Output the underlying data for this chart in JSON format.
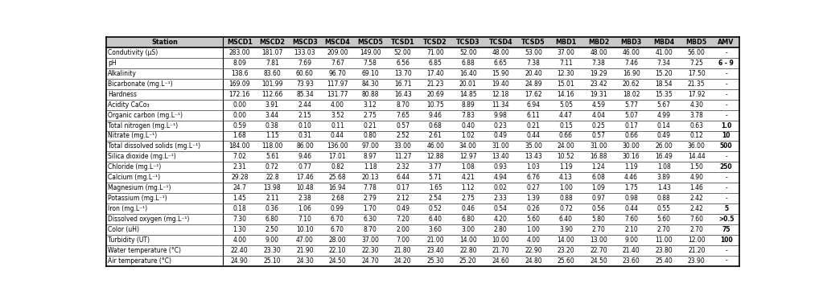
{
  "columns": [
    "Station",
    "MSCD1",
    "MSCD2",
    "MSCD3",
    "MSCD4",
    "MSCD5",
    "TCSD1",
    "TCSD2",
    "TCSD3",
    "TCSD4",
    "TCSD5",
    "MBD1",
    "MBD2",
    "MBD3",
    "MBD4",
    "MBD5",
    "AMV"
  ],
  "rows": [
    [
      "Condutivity (μS)",
      "283.00",
      "181.07",
      "133.03",
      "209.00",
      "149.00",
      "52.00",
      "71.00",
      "52.00",
      "48.00",
      "53.00",
      "37.00",
      "48.00",
      "46.00",
      "41.00",
      "56.00",
      "-"
    ],
    [
      "pH",
      "8.09",
      "7.81",
      "7.69",
      "7.67",
      "7.58",
      "6.56",
      "6.85",
      "6.88",
      "6.65",
      "7.38",
      "7.11",
      "7.38",
      "7.46",
      "7.34",
      "7.25",
      "6 - 9"
    ],
    [
      "Alkalinity",
      "138.6",
      "83.60",
      "60.60",
      "96.70",
      "69.10",
      "13.70",
      "17.40",
      "16.40",
      "15.90",
      "20.40",
      "12.30",
      "19.29",
      "16.90",
      "15.20",
      "17.50",
      "-"
    ],
    [
      "Bicarbonate (mg.L⁻¹)",
      "169.09",
      "101.99",
      "73.93",
      "117.97",
      "84.30",
      "16.71",
      "21.23",
      "20.01",
      "19.40",
      "24.89",
      "15.01",
      "23.42",
      "20.62",
      "18.54",
      "21.35",
      "-"
    ],
    [
      "Hardness",
      "172.16",
      "112.66",
      "85.34",
      "131.77",
      "80.88",
      "16.43",
      "20.69",
      "14.85",
      "12.18",
      "17.62",
      "14.16",
      "19.31",
      "18.02",
      "15.35",
      "17.92",
      "-"
    ],
    [
      "Acidity CaCo₃",
      "0.00",
      "3.91",
      "2.44",
      "4.00",
      "3.12",
      "8.70",
      "10.75",
      "8.89",
      "11.34",
      "6.94",
      "5.05",
      "4.59",
      "5.77",
      "5.67",
      "4.30",
      "-"
    ],
    [
      "Organic carbon (mg.L⁻¹)",
      "0.00",
      "3.44",
      "2.15",
      "3.52",
      "2.75",
      "7.65",
      "9.46",
      "7.83",
      "9.98",
      "6.11",
      "4.47",
      "4.04",
      "5.07",
      "4.99",
      "3.78",
      "-"
    ],
    [
      "Total nitrogen (mg.L⁻¹)",
      "0.59",
      "0.38",
      "0.10",
      "0.11",
      "0.21",
      "0.57",
      "0.68",
      "0.40",
      "0.23",
      "0.21",
      "0.15",
      "0.25",
      "0.17",
      "0.14",
      "0.63",
      "1.0"
    ],
    [
      "Nitrate (mg.L⁻¹)",
      "1.68",
      "1.15",
      "0.31",
      "0.44",
      "0.80",
      "2.52",
      "2.61",
      "1.02",
      "0.49",
      "0.44",
      "0.66",
      "0.57",
      "0.66",
      "0.49",
      "0.12",
      "10"
    ],
    [
      "Total dissolved solids (mg.L⁻¹)",
      "184.00",
      "118.00",
      "86.00",
      "136.00",
      "97.00",
      "33.00",
      "46.00",
      "34.00",
      "31.00",
      "35.00",
      "24.00",
      "31.00",
      "30.00",
      "26.00",
      "36.00",
      "500"
    ],
    [
      "Silica dioxide (mg.L⁻¹)",
      "7.02",
      "5.61",
      "9.46",
      "17.01",
      "8.97",
      "11.27",
      "12.88",
      "12.97",
      "13.40",
      "13.43",
      "10.52",
      "16.88",
      "30.16",
      "16.49",
      "14.44",
      "-"
    ],
    [
      "Chloride (mg.L⁻¹)",
      "2.31",
      "0.72",
      "0.77",
      "0.82",
      "1.18",
      "2.32",
      "3.77",
      "1.08",
      "0.93",
      "1.03",
      "1.19",
      "1.24",
      "1.19",
      "1.08",
      "1.50",
      "250"
    ],
    [
      "Calcium (mg.L⁻¹)",
      "29.28",
      "22.8",
      "17.46",
      "25.68",
      "20.13",
      "6.44",
      "5.71",
      "4.21",
      "4.94",
      "6.76",
      "4.13",
      "6.08",
      "4.46",
      "3.89",
      "4.90",
      "-"
    ],
    [
      "Magnesium (mg.L⁻¹)",
      "24.7",
      "13.98",
      "10.48",
      "16.94",
      "7.78",
      "0.17",
      "1.65",
      "1.12",
      "0.02",
      "0.27",
      "1.00",
      "1.09",
      "1.75",
      "1.43",
      "1.46",
      "-"
    ],
    [
      "Potassium (mg.L⁻¹)",
      "1.45",
      "2.11",
      "2.38",
      "2.68",
      "2.79",
      "2.12",
      "2.54",
      "2.75",
      "2.33",
      "1.39",
      "0.88",
      "0.97",
      "0.98",
      "0.88",
      "2.42",
      "-"
    ],
    [
      "Iron (mg.L⁻¹)",
      "0.18",
      "0.36",
      "1.06",
      "0.99",
      "1.70",
      "0.49",
      "0.52",
      "0.46",
      "0.54",
      "0.26",
      "0.72",
      "0.56",
      "0.44",
      "0.55",
      "2.42",
      "5"
    ],
    [
      "Dissolved oxygen (mg.L⁻¹)",
      "7.30",
      "6.80",
      "7.10",
      "6.70",
      "6.30",
      "7.20",
      "6.40",
      "6.80",
      "4.20",
      "5.60",
      "6.40",
      "5.80",
      "7.60",
      "5.60",
      "7.60",
      ">0.5"
    ],
    [
      "Color (uH)",
      "1.30",
      "2.50",
      "10.10",
      "6.70",
      "8.70",
      "2.00",
      "3.60",
      "3.00",
      "2.80",
      "1.00",
      "3.90",
      "2.70",
      "2.10",
      "2.70",
      "2.70",
      "75"
    ],
    [
      "Turbidity (UT)",
      "4.00",
      "9.00",
      "47.00",
      "28.00",
      "37.00",
      "7.00",
      "21.00",
      "14.00",
      "10.00",
      "4.00",
      "14.00",
      "13.00",
      "9.00",
      "11.00",
      "12.00",
      "100"
    ],
    [
      "Water temperature (°C)",
      "22.40",
      "23.30",
      "21.90",
      "22.10",
      "22.30",
      "21.80",
      "23.40",
      "22.80",
      "21.70",
      "22.90",
      "23.20",
      "22.70",
      "21.40",
      "23.80",
      "21.20",
      "-"
    ],
    [
      "Air temperature (°C)",
      "24.90",
      "25.10",
      "24.30",
      "24.50",
      "24.70",
      "24.20",
      "25.30",
      "25.20",
      "24.60",
      "24.80",
      "25.60",
      "24.50",
      "23.60",
      "25.40",
      "23.90",
      "-"
    ]
  ],
  "bold_amv": [
    "6 - 9",
    "1.0",
    "10",
    "500",
    "250",
    "5",
    ">0.5",
    "75",
    "100"
  ],
  "fontsize": 5.5,
  "header_fontsize": 5.8,
  "background_color": "#ffffff"
}
